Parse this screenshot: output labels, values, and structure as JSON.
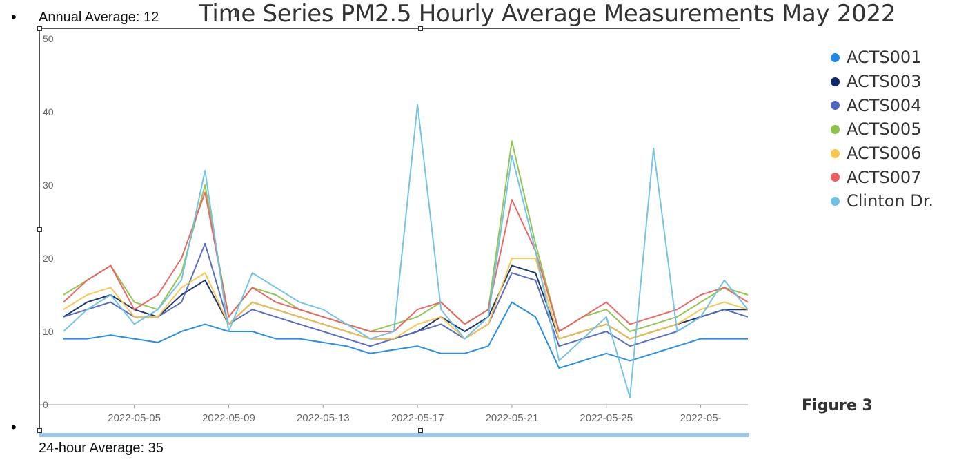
{
  "bullets": {
    "annual": "Annual Average: 12",
    "daily": "24-hour Average: 35"
  },
  "figure_label": "Figure 3",
  "chart_data": {
    "type": "line",
    "title": "Time Series PM2.5 Hourly Average Measurements May 2022",
    "xlabel": "",
    "ylabel": "",
    "ylim": [
      0,
      50
    ],
    "yticks": [
      0,
      10,
      20,
      30,
      40,
      50
    ],
    "xlim": [
      "2022-05-02",
      "2022-05-31"
    ],
    "xticks": [
      "2022-05-05",
      "2022-05-09",
      "2022-05-13",
      "2022-05-17",
      "2022-05-21",
      "2022-05-25",
      "2022-05-"
    ],
    "grid": false,
    "legend_position": "right",
    "x": [
      "2022-05-02",
      "2022-05-03",
      "2022-05-04",
      "2022-05-05",
      "2022-05-06",
      "2022-05-07",
      "2022-05-08",
      "2022-05-09",
      "2022-05-10",
      "2022-05-11",
      "2022-05-12",
      "2022-05-13",
      "2022-05-14",
      "2022-05-15",
      "2022-05-16",
      "2022-05-17",
      "2022-05-18",
      "2022-05-19",
      "2022-05-20",
      "2022-05-21",
      "2022-05-22",
      "2022-05-23",
      "2022-05-24",
      "2022-05-25",
      "2022-05-26",
      "2022-05-27",
      "2022-05-28",
      "2022-05-29",
      "2022-05-30",
      "2022-05-31"
    ],
    "series": [
      {
        "name": "ACTS001",
        "color": "#1e88e5",
        "values": [
          9,
          9,
          9.5,
          9,
          8.5,
          10,
          11,
          10,
          10,
          9,
          9,
          8.5,
          8,
          7,
          7.5,
          8,
          7,
          7,
          8,
          14,
          12,
          5,
          6,
          7,
          6,
          7,
          8,
          9,
          9,
          9
        ]
      },
      {
        "name": "ACTS003",
        "color": "#0d2a6b",
        "values": [
          12,
          14,
          15,
          13,
          12,
          15,
          17,
          11,
          14,
          13,
          12,
          11,
          10,
          9,
          9,
          10,
          12,
          10,
          12,
          19,
          18,
          9,
          10,
          11,
          9,
          10,
          11,
          12,
          13,
          13
        ]
      },
      {
        "name": "ACTS004",
        "color": "#4e66c2",
        "values": [
          12,
          13,
          14,
          12,
          12,
          14,
          22,
          11,
          13,
          12,
          11,
          10,
          9,
          8,
          9,
          10,
          11,
          9,
          11,
          18,
          17,
          8,
          9,
          10,
          8,
          9,
          10,
          12,
          13,
          12
        ]
      },
      {
        "name": "ACTS005",
        "color": "#8cc34a",
        "values": [
          15,
          17,
          19,
          14,
          13,
          18,
          30,
          12,
          16,
          15,
          13,
          12,
          11,
          10,
          11,
          12,
          14,
          11,
          13,
          36,
          22,
          10,
          12,
          13,
          10,
          11,
          12,
          14,
          16,
          15
        ]
      },
      {
        "name": "ACTS006",
        "color": "#f7c54a",
        "values": [
          13,
          15,
          16,
          12,
          12,
          16,
          18,
          11,
          14,
          13,
          12,
          11,
          10,
          9,
          9,
          11,
          12,
          9,
          11,
          20,
          20,
          9,
          10,
          11,
          9,
          10,
          11,
          13,
          14,
          13
        ]
      },
      {
        "name": "ACTS007",
        "color": "#ea6060",
        "values": [
          14,
          17,
          19,
          13,
          15,
          20,
          29,
          12,
          16,
          14,
          13,
          12,
          11,
          10,
          10,
          13,
          14,
          11,
          13,
          28,
          21,
          10,
          12,
          14,
          11,
          12,
          13,
          15,
          16,
          14
        ]
      },
      {
        "name": "Clinton Dr.",
        "color": "#6ec1e4",
        "values": [
          10,
          13,
          15,
          11,
          13,
          17,
          32,
          10,
          18,
          16,
          14,
          13,
          11,
          9,
          10,
          41,
          13,
          9,
          12,
          34,
          21,
          6,
          9,
          12,
          1,
          35,
          10,
          12,
          17,
          13
        ]
      }
    ]
  }
}
